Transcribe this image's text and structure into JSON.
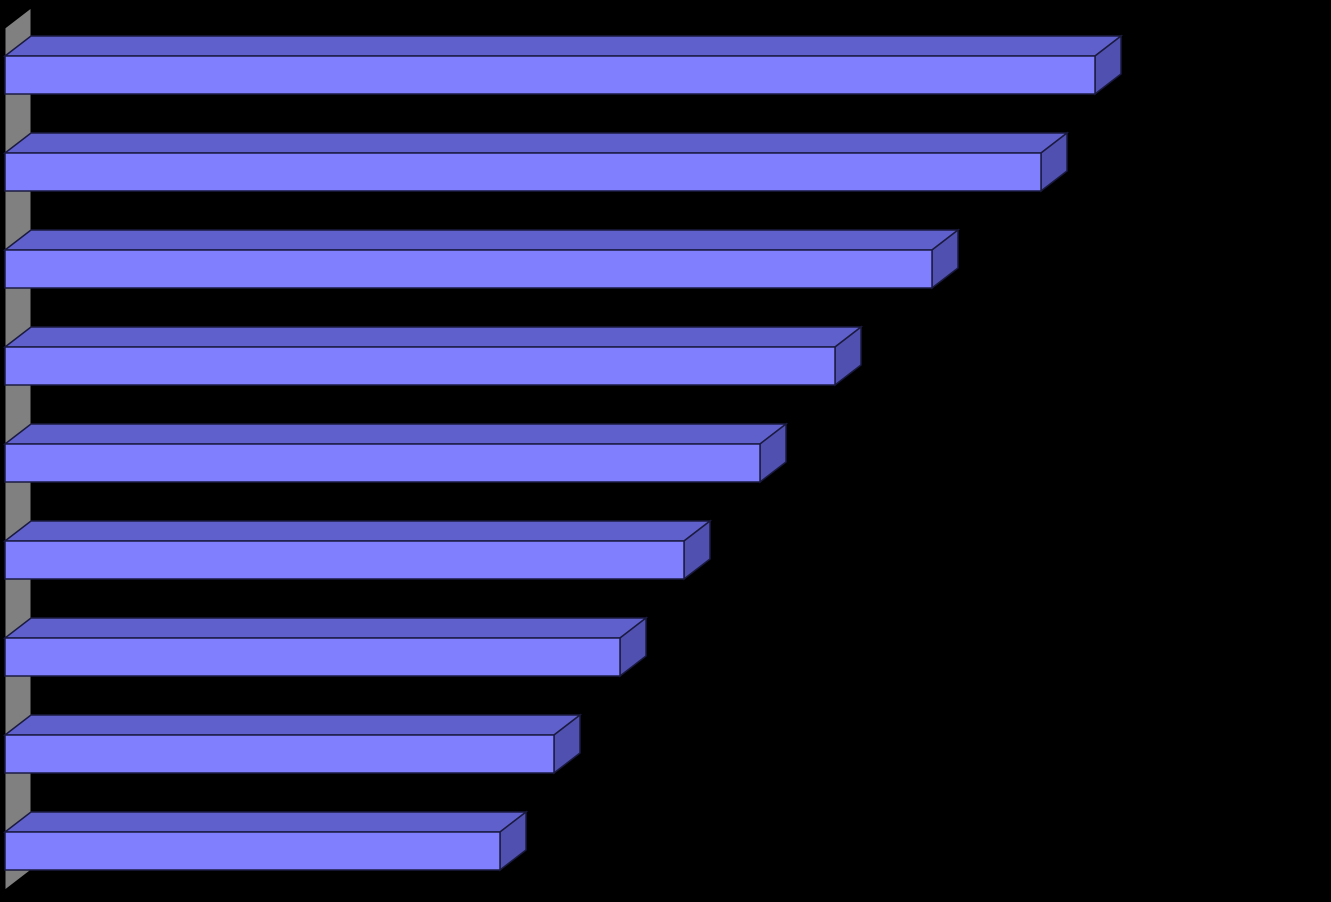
{
  "chart_data": {
    "type": "bar",
    "orientation": "horizontal",
    "three_d": true,
    "title": "",
    "xlabel": "",
    "ylabel": "",
    "categories": [
      "",
      "",
      "",
      "",
      "",
      "",
      "",
      "",
      ""
    ],
    "values": [
      1090,
      1036,
      927,
      830,
      755,
      679,
      615,
      549,
      495
    ],
    "xlim": [
      0,
      1325
    ],
    "grid": false,
    "legend": "none",
    "colors": {
      "background": "#000000",
      "bar_front": "#8080FF",
      "bar_top": "#6060CC",
      "bar_side": "#5050B0",
      "bar_outline": "#1a1a40",
      "axis_wall": "#808080"
    }
  }
}
